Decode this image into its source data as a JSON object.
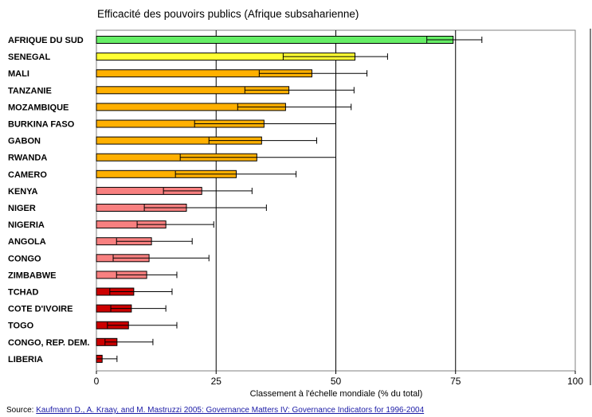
{
  "chart_data": {
    "type": "bar",
    "orientation": "horizontal",
    "title": "Efficacité des pouvoirs publics (Afrique subsaharienne)",
    "xlabel": "Classement  à l'échelle mondiale (% du total)",
    "ylabel": "",
    "xlim": [
      0,
      100
    ],
    "xticks": [
      0,
      25,
      50,
      75,
      100
    ],
    "grid": "vertical",
    "colors": {
      "green": "#66ee66",
      "yellow": "#ffff33",
      "orange": "#ffb000",
      "pink": "#f88080",
      "red": "#cc0000"
    },
    "categories": [
      {
        "label": "AFRIQUE DU SUD",
        "value": 74.5,
        "ci_low": 69,
        "ci_high": 80.5,
        "color": "green"
      },
      {
        "label": "SENEGAL",
        "value": 54,
        "ci_low": 39,
        "ci_high": 60.8,
        "color": "yellow"
      },
      {
        "label": "MALI",
        "value": 45,
        "ci_low": 34,
        "ci_high": 56.5,
        "color": "orange"
      },
      {
        "label": "TANZANIE",
        "value": 40.2,
        "ci_low": 31,
        "ci_high": 53.8,
        "color": "orange"
      },
      {
        "label": "MOZAMBIQUE",
        "value": 39.5,
        "ci_low": 29.5,
        "ci_high": 53.2,
        "color": "orange"
      },
      {
        "label": "BURKINA FASO",
        "value": 35,
        "ci_low": 20.5,
        "ci_high": 50,
        "color": "orange"
      },
      {
        "label": "GABON",
        "value": 34.5,
        "ci_low": 23.5,
        "ci_high": 46,
        "color": "orange"
      },
      {
        "label": "RWANDA",
        "value": 33.5,
        "ci_low": 17.5,
        "ci_high": 50,
        "color": "orange"
      },
      {
        "label": "CAMERO",
        "value": 29.2,
        "ci_low": 16.5,
        "ci_high": 41.7,
        "color": "orange"
      },
      {
        "label": "KENYA",
        "value": 22,
        "ci_low": 14,
        "ci_high": 32.5,
        "color": "pink"
      },
      {
        "label": "NIGER",
        "value": 18.8,
        "ci_low": 10,
        "ci_high": 35.5,
        "color": "pink"
      },
      {
        "label": "NIGERIA",
        "value": 14.5,
        "ci_low": 8.5,
        "ci_high": 24.5,
        "color": "pink"
      },
      {
        "label": "ANGOLA",
        "value": 11.5,
        "ci_low": 4.2,
        "ci_high": 20,
        "color": "pink"
      },
      {
        "label": "CONGO",
        "value": 11,
        "ci_low": 3.5,
        "ci_high": 23.5,
        "color": "pink"
      },
      {
        "label": "ZIMBABWE",
        "value": 10.5,
        "ci_low": 4.2,
        "ci_high": 16.8,
        "color": "pink"
      },
      {
        "label": "TCHAD",
        "value": 7.8,
        "ci_low": 2.8,
        "ci_high": 15.8,
        "color": "red"
      },
      {
        "label": "COTE D'IVOIRE",
        "value": 7.3,
        "ci_low": 3,
        "ci_high": 14.5,
        "color": "red"
      },
      {
        "label": "TOGO",
        "value": 6.7,
        "ci_low": 2.3,
        "ci_high": 16.8,
        "color": "red"
      },
      {
        "label": "CONGO, REP. DEM.",
        "value": 4.3,
        "ci_low": 1.8,
        "ci_high": 11.8,
        "color": "red"
      },
      {
        "label": "LIBERIA",
        "value": 1.2,
        "ci_low": 0,
        "ci_high": 4.3,
        "color": "red"
      }
    ]
  },
  "source": {
    "prefix": "Source: ",
    "link_text": "Kaufmann D., A. Kraay, and M. Mastruzzi 2005: Governance Matters IV: Governance Indicators for 1996-2004"
  }
}
